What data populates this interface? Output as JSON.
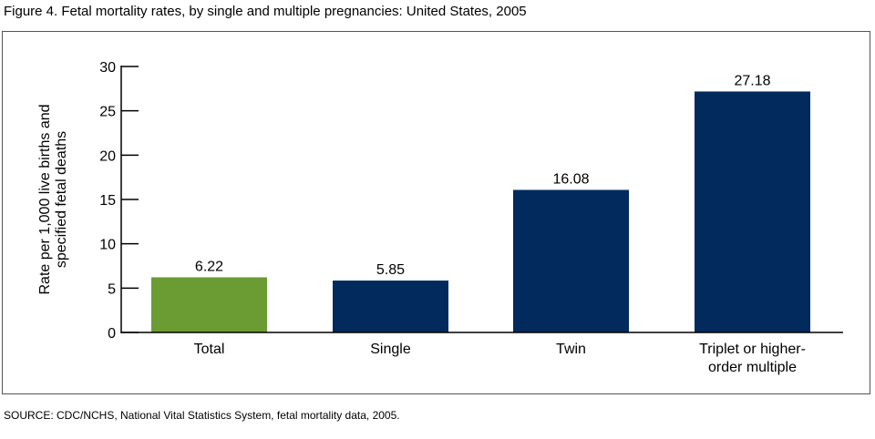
{
  "figure_title": "Figure 4.  Fetal mortality rates, by single and multiple pregnancies: United States, 2005",
  "source_note": "SOURCE: CDC/NCHS, National Vital Statistics System, fetal mortality data, 2005.",
  "chart_data": {
    "type": "bar",
    "title": "Figure 4.  Fetal mortality rates, by single and multiple pregnancies: United States, 2005",
    "categories": [
      "Total",
      "Single",
      "Twin",
      "Triplet or higher-order multiple"
    ],
    "category_label_lines": [
      [
        "Total"
      ],
      [
        "Single"
      ],
      [
        "Twin"
      ],
      [
        "Triplet or higher-",
        "order multiple"
      ]
    ],
    "values": [
      6.22,
      5.85,
      16.08,
      27.18
    ],
    "data_labels": [
      "6.22",
      "5.85",
      "16.08",
      "27.18"
    ],
    "colors": [
      "#6b9b33",
      "#022a5c",
      "#022a5c",
      "#022a5c"
    ],
    "xlabel": "",
    "ylabel_lines": [
      "Rate per 1,000 live births and",
      "specified fetal deaths"
    ],
    "ylim": [
      0,
      30
    ],
    "yticks": [
      0,
      5,
      10,
      15,
      20,
      25,
      30
    ],
    "grid": false,
    "legend": "none"
  }
}
